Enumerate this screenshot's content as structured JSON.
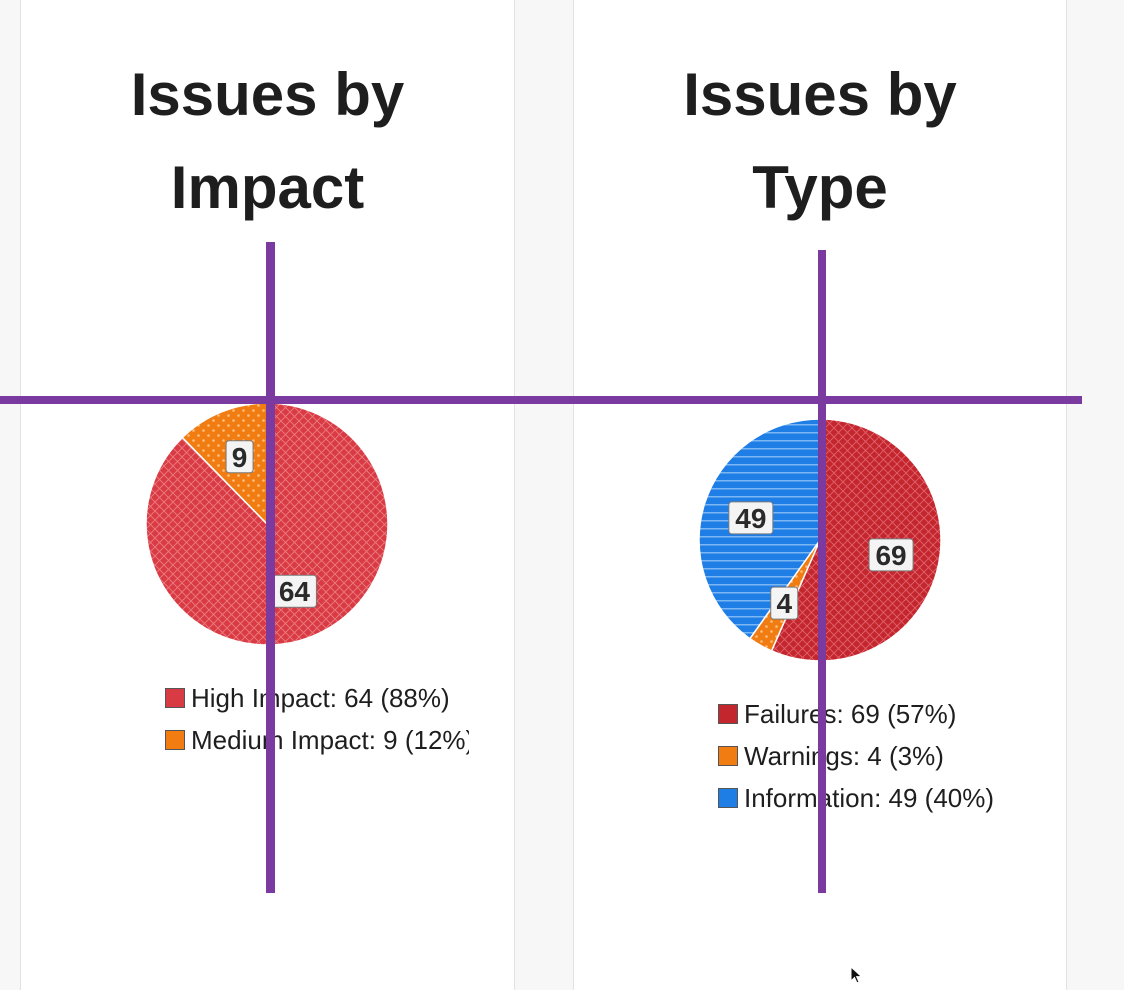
{
  "colors": {
    "high": "#d93b44",
    "medium": "#f07c12",
    "failures": "#c4262e",
    "warnings": "#f07c12",
    "information": "#1f7ee6",
    "crosshair": "#7b3aa0"
  },
  "chart_data": [
    {
      "type": "pie",
      "title": "Issues by\nImpact",
      "slices": [
        {
          "name": "High Impact",
          "value": 64,
          "label": "64",
          "color": "#d93b44",
          "pattern": "crosshatch"
        },
        {
          "name": "Medium Impact",
          "value": 9,
          "label": "9",
          "color": "#f07c12",
          "pattern": "dots"
        }
      ],
      "legend": [
        "High Impact: 64 (88%)",
        "Medium Impact: 9 (12%)"
      ],
      "legend_placement": "bottom"
    },
    {
      "type": "pie",
      "title": "Issues by\nType",
      "slices": [
        {
          "name": "Failures",
          "value": 69,
          "label": "69",
          "color": "#c4262e",
          "pattern": "crosshatch"
        },
        {
          "name": "Warnings",
          "value": 4,
          "label": "4",
          "color": "#f07c12",
          "pattern": "dots"
        },
        {
          "name": "Information",
          "value": 49,
          "label": "49",
          "color": "#1f7ee6",
          "pattern": "stripes"
        }
      ],
      "legend": [
        "Failures: 69 (57%)",
        "Warnings: 4 (3%)",
        "Information: 49 (40%)"
      ],
      "legend_placement": "bottom"
    }
  ],
  "icons": {
    "cursor": "arrow-cursor-icon"
  }
}
